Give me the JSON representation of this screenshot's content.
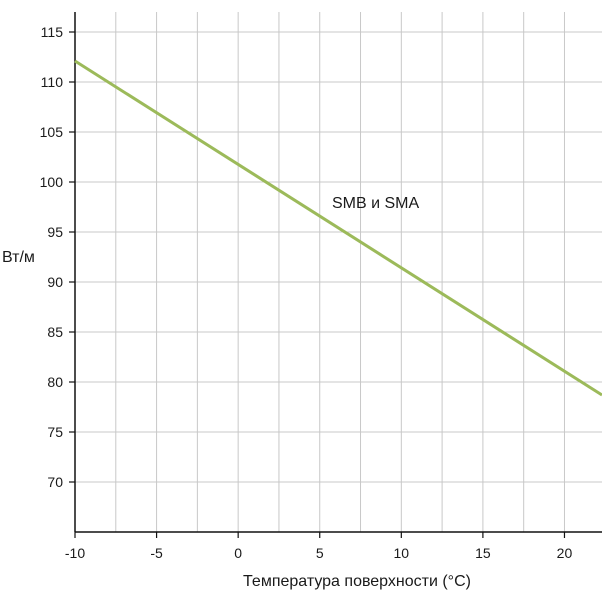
{
  "chart_data": {
    "type": "line",
    "xlabel": "Температура поверхности (°C)",
    "ylabel": "Вт/м",
    "xlim": [
      -10,
      22.3
    ],
    "ylim": [
      65,
      117
    ],
    "xticks": [
      -10,
      -5,
      0,
      5,
      10,
      15,
      20
    ],
    "yticks": [
      70,
      75,
      80,
      85,
      90,
      95,
      100,
      105,
      110,
      115
    ],
    "grid": true,
    "series": [
      {
        "name": "SMB и SMA",
        "color": "#9cba5a",
        "x": [
          -10,
          22.3
        ],
        "y": [
          112.1,
          78.7
        ]
      }
    ]
  }
}
